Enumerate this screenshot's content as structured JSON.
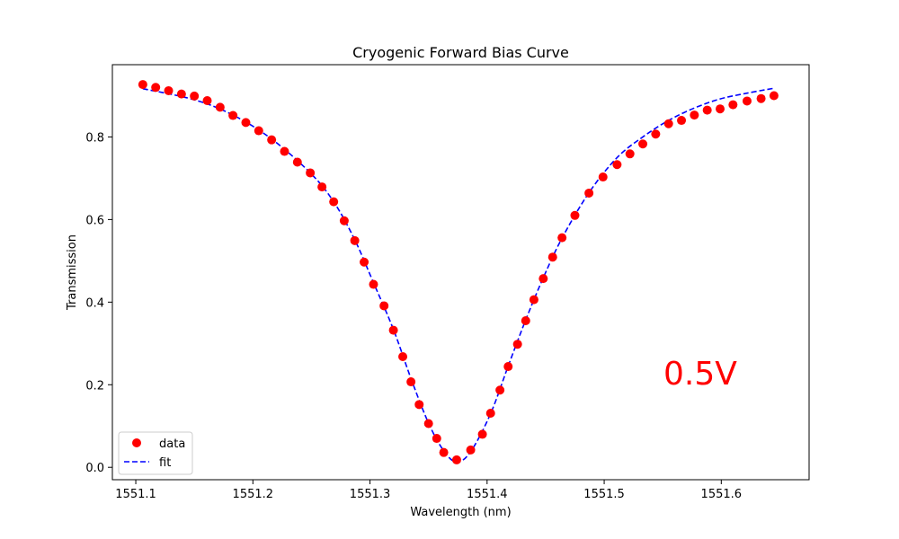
{
  "chart_data": {
    "type": "scatter",
    "title": "Cryogenic Forward Bias Curve",
    "xlabel": "Wavelength (nm)",
    "ylabel": "Transmission",
    "xlim": [
      1551.08,
      1551.675
    ],
    "ylim": [
      -0.03,
      0.975
    ],
    "xticks": [
      1551.1,
      1551.2,
      1551.3,
      1551.4,
      1551.5,
      1551.6
    ],
    "xtick_labels": [
      "1551.1",
      "1551.2",
      "1551.3",
      "1551.4",
      "1551.5",
      "1551.6"
    ],
    "yticks": [
      0.0,
      0.2,
      0.4,
      0.6,
      0.8
    ],
    "ytick_labels": [
      "0.0",
      "0.2",
      "0.4",
      "0.6",
      "0.8"
    ],
    "grid": false,
    "legend_position": "lower-left",
    "series": [
      {
        "name": "data",
        "kind": "scatter",
        "marker": "circle",
        "color": "#ff0000",
        "x": [
          1551.106,
          1551.117,
          1551.128,
          1551.139,
          1551.15,
          1551.161,
          1551.172,
          1551.183,
          1551.194,
          1551.205,
          1551.216,
          1551.227,
          1551.238,
          1551.249,
          1551.259,
          1551.269,
          1551.278,
          1551.287,
          1551.295,
          1551.303,
          1551.312,
          1551.32,
          1551.328,
          1551.335,
          1551.342,
          1551.35,
          1551.357,
          1551.363,
          1551.374,
          1551.386,
          1551.396,
          1551.403,
          1551.411,
          1551.418,
          1551.426,
          1551.433,
          1551.44,
          1551.448,
          1551.456,
          1551.464,
          1551.475,
          1551.487,
          1551.499,
          1551.511,
          1551.522,
          1551.533,
          1551.544,
          1551.555,
          1551.566,
          1551.577,
          1551.588,
          1551.599,
          1551.61,
          1551.622,
          1551.634,
          1551.645
        ],
        "y": [
          0.927,
          0.92,
          0.912,
          0.904,
          0.899,
          0.888,
          0.872,
          0.852,
          0.835,
          0.815,
          0.793,
          0.765,
          0.739,
          0.713,
          0.679,
          0.643,
          0.597,
          0.549,
          0.497,
          0.443,
          0.391,
          0.332,
          0.268,
          0.207,
          0.152,
          0.106,
          0.07,
          0.036,
          0.018,
          0.042,
          0.08,
          0.131,
          0.187,
          0.244,
          0.298,
          0.355,
          0.406,
          0.457,
          0.509,
          0.556,
          0.61,
          0.664,
          0.703,
          0.733,
          0.759,
          0.783,
          0.807,
          0.832,
          0.84,
          0.853,
          0.865,
          0.868,
          0.878,
          0.887,
          0.893,
          0.9
        ]
      },
      {
        "name": "fit",
        "kind": "line",
        "style": "dashed",
        "color": "#0000ff",
        "x": [
          1551.106,
          1551.15,
          1551.183,
          1551.216,
          1551.249,
          1551.269,
          1551.287,
          1551.303,
          1551.32,
          1551.335,
          1551.35,
          1551.363,
          1551.374,
          1551.386,
          1551.403,
          1551.418,
          1551.433,
          1551.448,
          1551.464,
          1551.487,
          1551.511,
          1551.533,
          1551.555,
          1551.577,
          1551.599,
          1551.622,
          1551.645
        ],
        "y": [
          0.917,
          0.89,
          0.853,
          0.795,
          0.713,
          0.643,
          0.551,
          0.447,
          0.334,
          0.215,
          0.107,
          0.04,
          0.013,
          0.038,
          0.13,
          0.245,
          0.357,
          0.459,
          0.555,
          0.665,
          0.75,
          0.8,
          0.84,
          0.87,
          0.892,
          0.906,
          0.918
        ]
      }
    ],
    "annotation": {
      "text": "0.5V",
      "color": "#ff0000",
      "x": 1551.55,
      "y": 0.2
    }
  }
}
